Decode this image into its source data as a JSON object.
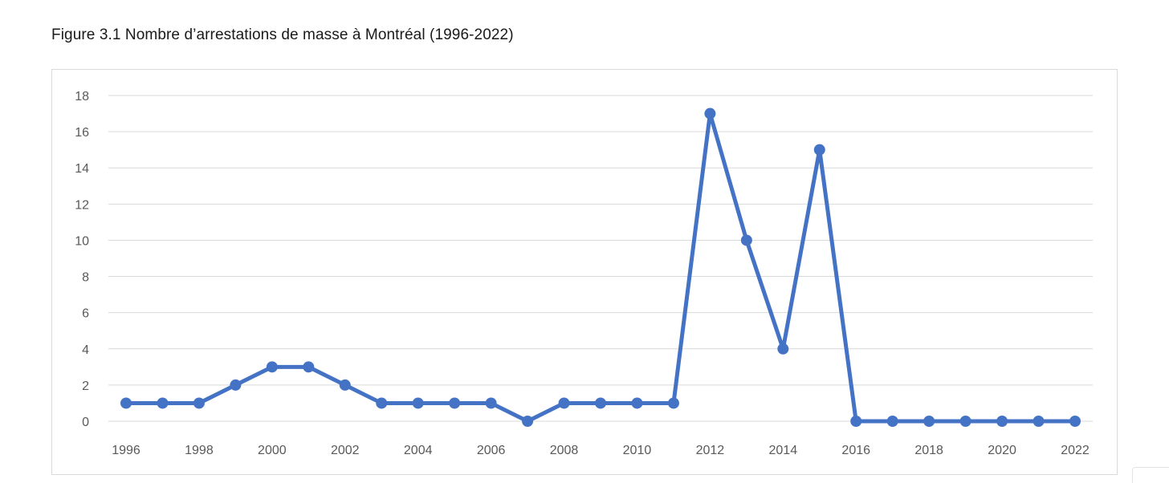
{
  "figure": {
    "title": "Figure 3.1 Nombre d’arrestations de masse à Montréal (1996-2022)"
  },
  "chart_data": {
    "type": "line",
    "title": "",
    "xlabel": "",
    "ylabel": "",
    "x": [
      1996,
      1997,
      1998,
      1999,
      2000,
      2001,
      2002,
      2003,
      2004,
      2005,
      2006,
      2007,
      2008,
      2009,
      2010,
      2011,
      2012,
      2013,
      2014,
      2015,
      2016,
      2017,
      2018,
      2019,
      2020,
      2021,
      2022
    ],
    "series": [
      {
        "values": [
          1,
          1,
          1,
          2,
          3,
          3,
          2,
          1,
          1,
          1,
          1,
          0,
          1,
          1,
          1,
          1,
          17,
          10,
          4,
          15,
          0,
          0,
          0,
          0,
          0,
          0,
          0
        ],
        "color": "#4472c4"
      }
    ],
    "x_tick_labels": [
      "1996",
      "1998",
      "2000",
      "2002",
      "2004",
      "2006",
      "2008",
      "2010",
      "2012",
      "2014",
      "2016",
      "2018",
      "2020",
      "2022"
    ],
    "y_tick_labels": [
      "0",
      "2",
      "4",
      "6",
      "8",
      "10",
      "12",
      "14",
      "16",
      "18"
    ],
    "ylim": [
      0,
      18
    ],
    "y_step": 2,
    "grid": true,
    "legend": "none",
    "gridline_color": "#d9d9d9"
  }
}
